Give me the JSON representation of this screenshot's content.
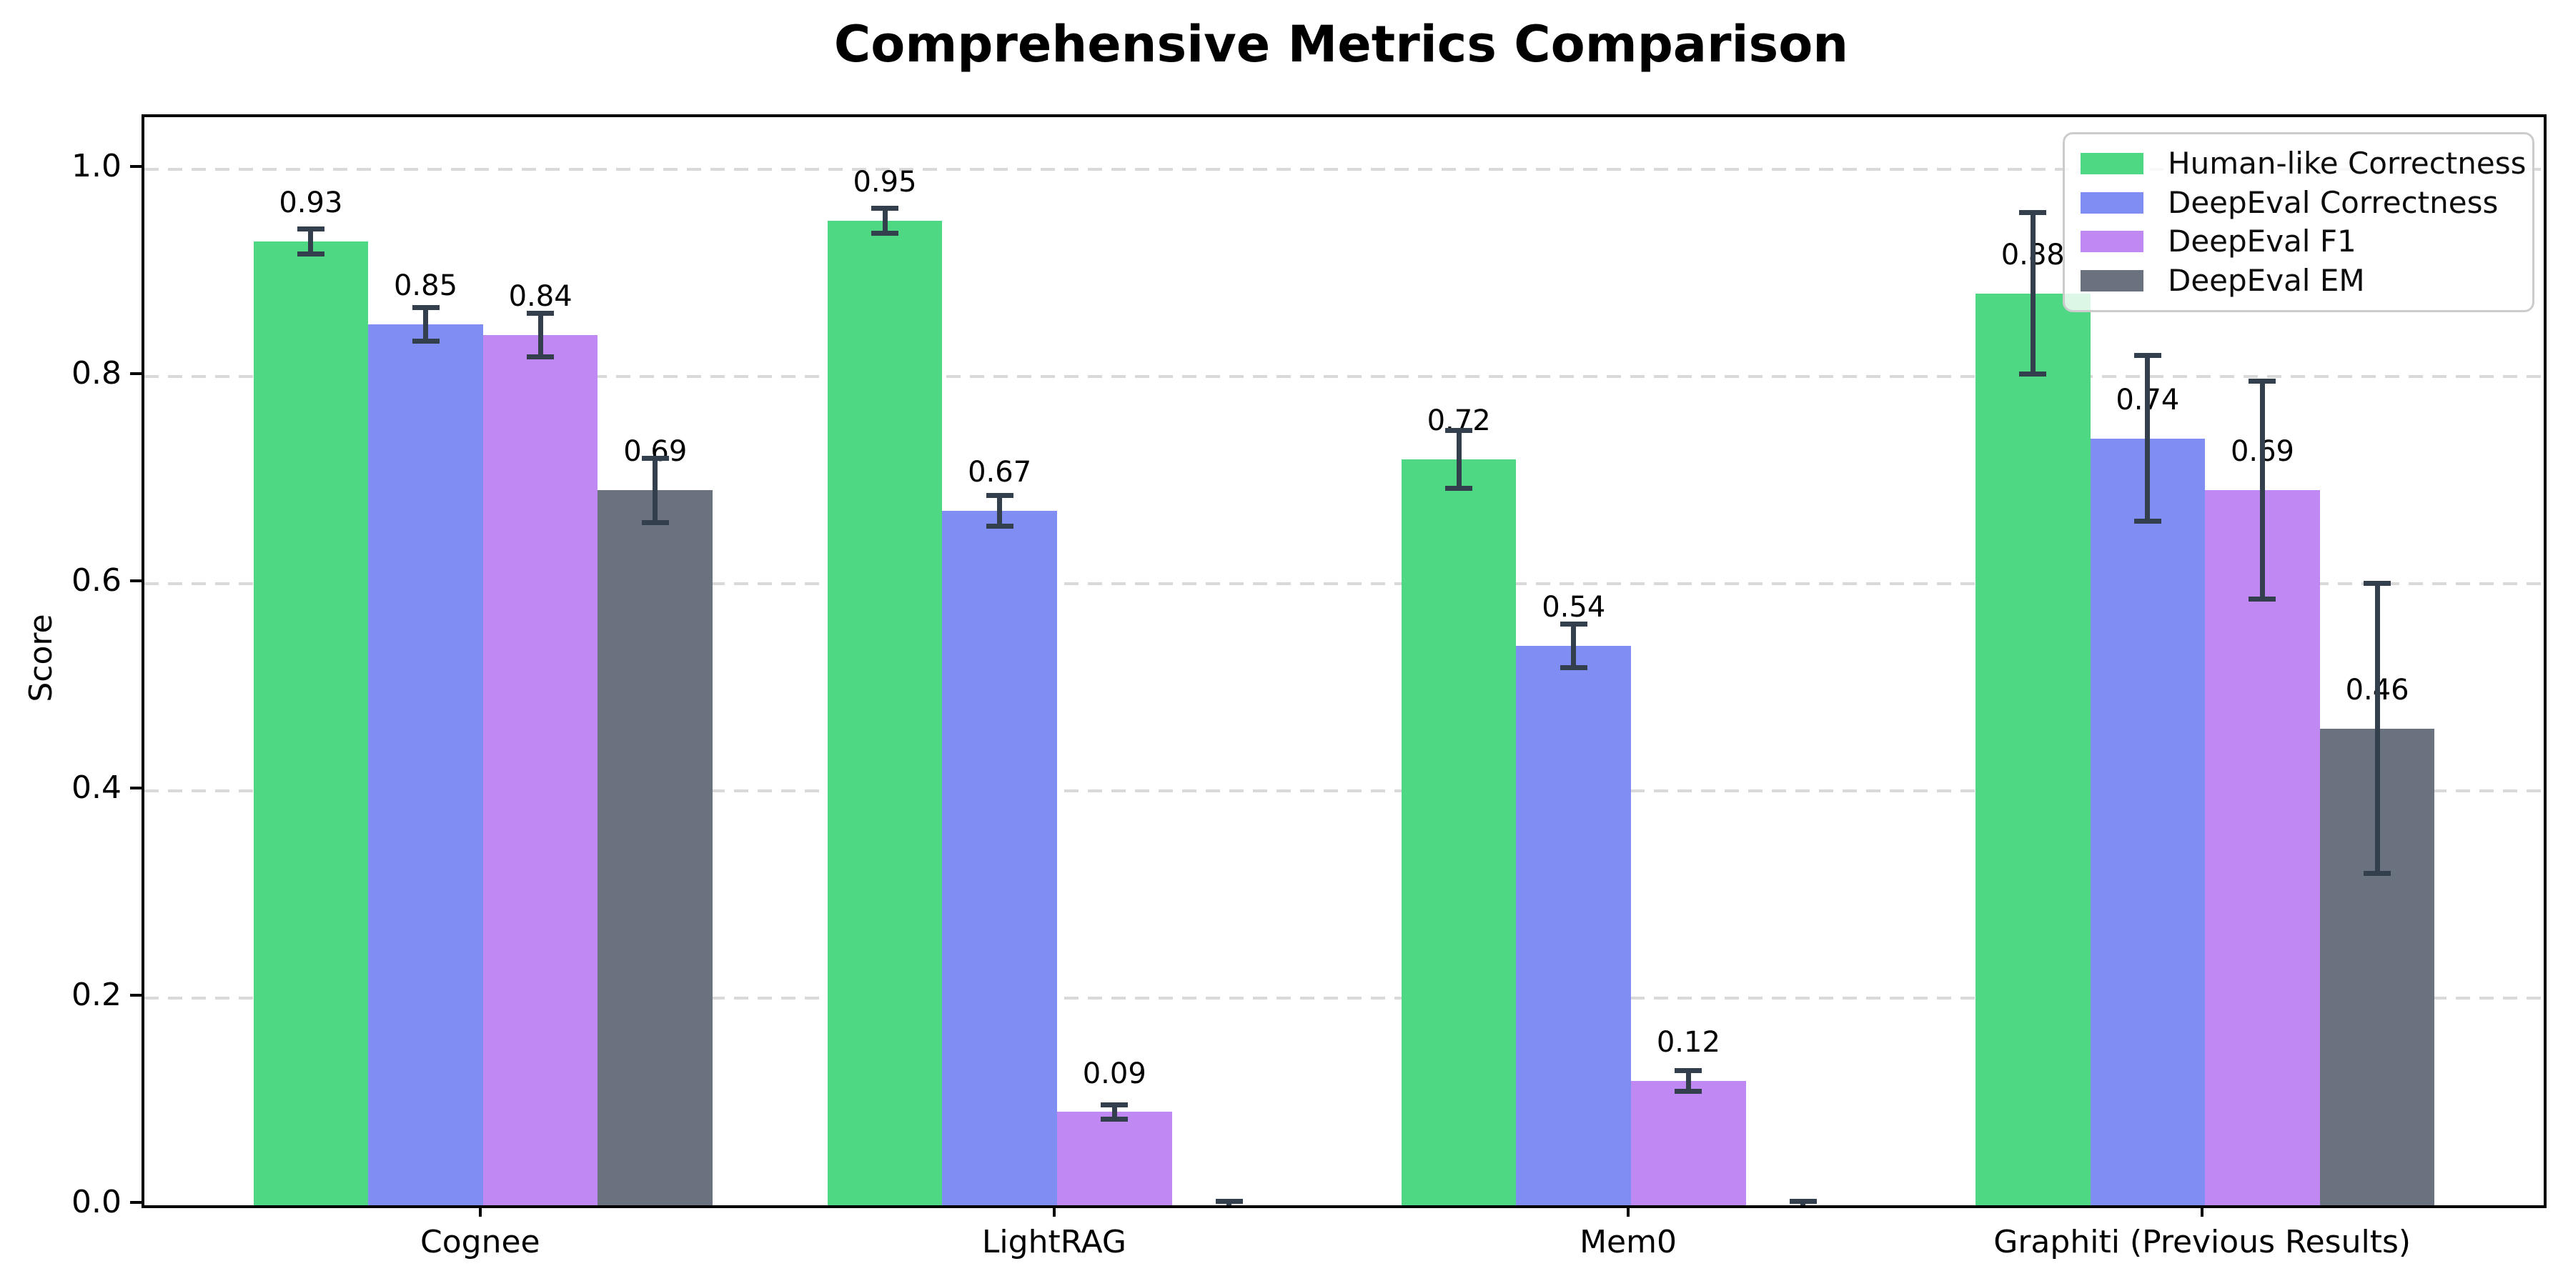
{
  "page": {
    "background": "#ffffff"
  },
  "chart_data": {
    "type": "bar",
    "title": "Comprehensive Metrics Comparison",
    "xlabel": "",
    "ylabel": "Score",
    "categories": [
      "Cognee",
      "LightRAG",
      "Mem0",
      "Graphiti (Previous Results)"
    ],
    "series": [
      {
        "name": "Human-like Correctness",
        "color": "#4fd883",
        "values": [
          0.93,
          0.95,
          0.72,
          0.88
        ],
        "errors": [
          0.012,
          0.012,
          0.028,
          0.078
        ]
      },
      {
        "name": "DeepEval Correctness",
        "color": "#808df2",
        "values": [
          0.85,
          0.67,
          0.54,
          0.74
        ],
        "errors": [
          0.016,
          0.015,
          0.021,
          0.08
        ]
      },
      {
        "name": "DeepEval F1",
        "color": "#bf88f3",
        "values": [
          0.84,
          0.09,
          0.12,
          0.69
        ],
        "errors": [
          0.021,
          0.007,
          0.01,
          0.105
        ]
      },
      {
        "name": "DeepEval EM",
        "color": "#6a7280",
        "values": [
          0.69,
          0.0,
          0.0,
          0.46
        ],
        "errors": [
          0.031,
          0.004,
          0.004,
          0.14
        ]
      }
    ],
    "bar_value_labels": {
      "Cognee": [
        "0.93",
        "0.85",
        "0.84",
        "0.69"
      ],
      "LightRAG": [
        "0.95",
        "0.67",
        "0.09",
        ""
      ],
      "Mem0": [
        "0.72",
        "0.54",
        "0.12",
        ""
      ],
      "Graphiti (Previous Results)": [
        "0.88",
        "0.74",
        "0.69",
        "0.46"
      ]
    },
    "yticks": [
      "0.0",
      "0.2",
      "0.4",
      "0.6",
      "0.8",
      "1.0"
    ],
    "ylim": [
      0,
      1.05
    ],
    "grid": {
      "axis": "y",
      "style": "dashed",
      "color": "#d9d9d9"
    },
    "legend": {
      "position": "upper-right"
    },
    "error_bar_color": "#333f4d",
    "axis_color": "#000000"
  }
}
